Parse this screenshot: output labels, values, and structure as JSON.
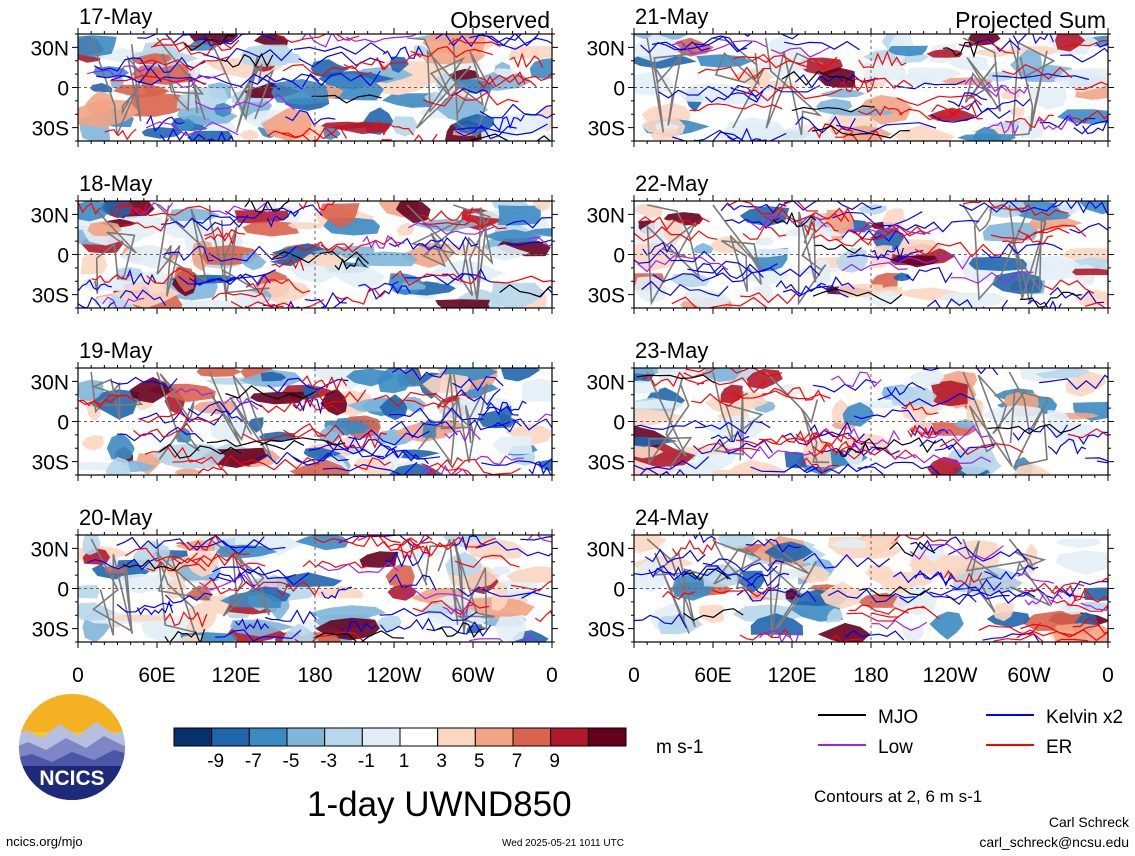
{
  "chart_data": {
    "type": "heatmap",
    "title": "1-day UWND850",
    "units": "m s-1",
    "contour_note": "Contours at 2, 6 m s-1",
    "columns": [
      {
        "label": "Observed",
        "panels": [
          "17-May",
          "18-May",
          "19-May",
          "20-May"
        ]
      },
      {
        "label": "Projected Sum",
        "panels": [
          "21-May",
          "22-May",
          "23-May",
          "24-May"
        ]
      }
    ],
    "x_ticks": [
      "0",
      "60E",
      "120E",
      "180",
      "120W",
      "60W",
      "0"
    ],
    "y_ticks": [
      "30N",
      "0",
      "30S"
    ],
    "xlim_deg_east": [
      0,
      360
    ],
    "ylim_deg": [
      -40,
      40
    ],
    "colorbar": {
      "tick_labels": [
        "-9",
        "-7",
        "-5",
        "-3",
        "-1",
        "1",
        "3",
        "5",
        "7",
        "9"
      ],
      "colors": [
        "#08306b",
        "#1f65ad",
        "#3b8ac2",
        "#7fb6da",
        "#b7d7ea",
        "#e2eef6",
        "#ffffff",
        "#fbd7c2",
        "#f2a484",
        "#d9634d",
        "#b2182b",
        "#67001f"
      ]
    },
    "legend": [
      {
        "label": "MJO",
        "color": "#000000"
      },
      {
        "label": "Kelvin x2",
        "color": "#0000ff"
      },
      {
        "label": "Low",
        "color": "#a020f0"
      },
      {
        "label": "ER",
        "color": "#ff0000"
      }
    ]
  },
  "branding": {
    "logo_text": "NCICS",
    "site": "ncics.org/mjo",
    "timestamp": "Wed 2025-05-21 1011 UTC",
    "author_name": "Carl Schreck",
    "author_email": "carl_schreck@ncsu.edu"
  }
}
